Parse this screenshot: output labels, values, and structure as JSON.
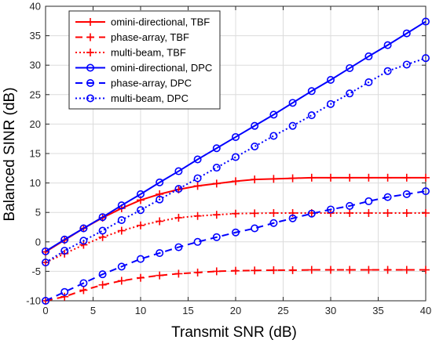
{
  "chart_data": {
    "type": "line",
    "xlabel": "Transmit SNR (dB)",
    "ylabel": "Balanced SINR (dB)",
    "xlim": [
      0,
      40
    ],
    "ylim": [
      -10,
      40
    ],
    "xticks": [
      0,
      5,
      10,
      15,
      20,
      25,
      30,
      35,
      40
    ],
    "yticks": [
      -10,
      -5,
      0,
      5,
      10,
      15,
      20,
      25,
      30,
      35,
      40
    ],
    "grid": true,
    "legend_position": "top-left",
    "series": [
      {
        "name": "omini-directional, TBF",
        "color": "#ff0000",
        "dash": "solid",
        "marker": "plus",
        "x": [
          0,
          2,
          4,
          6,
          8,
          10,
          12,
          14,
          16,
          18,
          20,
          22,
          24,
          26,
          28,
          30,
          32,
          34,
          36,
          38,
          40
        ],
        "y": [
          -1.7,
          0.3,
          2.3,
          4.1,
          5.7,
          7.1,
          8.1,
          8.9,
          9.5,
          9.9,
          10.3,
          10.6,
          10.7,
          10.8,
          10.9,
          10.9,
          10.9,
          10.9,
          10.9,
          10.9,
          10.9
        ]
      },
      {
        "name": "phase-array, TBF",
        "color": "#ff0000",
        "dash": "dashed",
        "marker": "plus",
        "x": [
          0,
          2,
          4,
          6,
          8,
          10,
          12,
          14,
          16,
          18,
          20,
          22,
          24,
          26,
          28,
          30,
          32,
          34,
          36,
          38,
          40
        ],
        "y": [
          -10,
          -9.3,
          -8.2,
          -7.3,
          -6.6,
          -6.1,
          -5.7,
          -5.4,
          -5.2,
          -5.0,
          -4.9,
          -4.85,
          -4.8,
          -4.8,
          -4.75,
          -4.75,
          -4.75,
          -4.75,
          -4.75,
          -4.75,
          -4.75
        ]
      },
      {
        "name": "multi-beam, TBF",
        "color": "#ff0000",
        "dash": "dotted",
        "marker": "plus",
        "x": [
          0,
          2,
          4,
          6,
          8,
          10,
          12,
          14,
          16,
          18,
          20,
          22,
          24,
          26,
          28,
          30,
          32,
          34,
          36,
          38,
          40
        ],
        "y": [
          -3.5,
          -2.0,
          -0.5,
          0.8,
          1.9,
          2.8,
          3.5,
          4.1,
          4.4,
          4.6,
          4.8,
          4.85,
          4.9,
          4.9,
          4.9,
          4.9,
          4.9,
          4.9,
          4.9,
          4.9,
          4.9
        ]
      },
      {
        "name": "omini-directional, DPC",
        "color": "#0000ff",
        "dash": "solid",
        "marker": "circle",
        "x": [
          0,
          2,
          4,
          6,
          8,
          10,
          12,
          14,
          16,
          18,
          20,
          22,
          24,
          26,
          28,
          30,
          32,
          34,
          36,
          38,
          40
        ],
        "y": [
          -1.6,
          0.4,
          2.3,
          4.2,
          6.2,
          8.1,
          10.1,
          12.0,
          14.0,
          15.9,
          17.8,
          19.7,
          21.6,
          23.6,
          25.6,
          27.5,
          29.5,
          31.5,
          33.4,
          35.4,
          37.4
        ]
      },
      {
        "name": "phase-array, DPC",
        "color": "#0000ff",
        "dash": "dashed",
        "marker": "circle",
        "x": [
          0,
          2,
          4,
          6,
          8,
          10,
          12,
          14,
          16,
          18,
          20,
          22,
          24,
          26,
          28,
          30,
          32,
          34,
          36,
          38,
          40
        ],
        "y": [
          -10,
          -8.5,
          -7.0,
          -5.5,
          -4.2,
          -2.9,
          -1.9,
          -0.9,
          0.0,
          0.8,
          1.6,
          2.3,
          3.2,
          4.0,
          4.8,
          5.5,
          6.1,
          6.9,
          7.6,
          8.1,
          8.6
        ]
      },
      {
        "name": "multi-beam, DPC",
        "color": "#0000ff",
        "dash": "dotted",
        "marker": "circle",
        "x": [
          0,
          2,
          4,
          6,
          8,
          10,
          12,
          14,
          16,
          18,
          20,
          22,
          24,
          26,
          28,
          30,
          32,
          34,
          36,
          38,
          40
        ],
        "y": [
          -3.5,
          -1.5,
          0.2,
          1.9,
          3.7,
          5.4,
          7.2,
          9.0,
          10.8,
          12.6,
          14.4,
          16.2,
          18.0,
          19.7,
          21.5,
          23.4,
          25.2,
          27.1,
          29.0,
          30.1,
          31.2
        ]
      }
    ]
  }
}
